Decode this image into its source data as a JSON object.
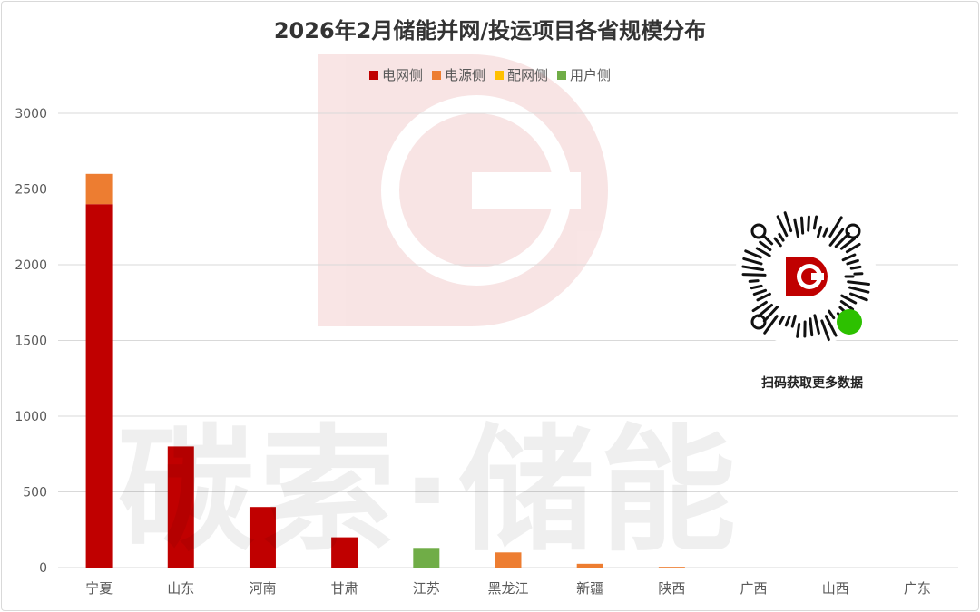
{
  "chart_data": {
    "type": "bar",
    "stacked": true,
    "title": "2026年2月储能并网/投运项目各省规模分布",
    "xlabel": "",
    "ylabel": "",
    "ylim": [
      0,
      3000
    ],
    "yticks": [
      0,
      500,
      1000,
      1500,
      2000,
      2500,
      3000
    ],
    "grid": true,
    "legend_position": "top",
    "categories": [
      "宁夏",
      "山东",
      "河南",
      "甘肃",
      "江苏",
      "黑龙江",
      "新疆",
      "陕西",
      "广西",
      "山西",
      "广东"
    ],
    "series": [
      {
        "name": "电网侧",
        "color": "#C00000",
        "values": [
          2400,
          800,
          400,
          200,
          0,
          0,
          0,
          0,
          0,
          0,
          0
        ]
      },
      {
        "name": "电源侧",
        "color": "#ED7D31",
        "values": [
          200,
          0,
          0,
          0,
          0,
          100,
          25,
          5,
          0,
          0,
          0
        ]
      },
      {
        "name": "配网侧",
        "color": "#FFC000",
        "values": [
          0,
          0,
          0,
          0,
          0,
          0,
          0,
          0,
          0,
          0,
          0
        ]
      },
      {
        "name": "用户侧",
        "color": "#70AD47",
        "values": [
          0,
          0,
          0,
          0,
          130,
          0,
          0,
          0,
          0,
          0,
          0
        ]
      }
    ]
  },
  "watermark": {
    "text": "碳索·储能",
    "logo_letter": "D",
    "logo_color": "#C00000"
  },
  "qr": {
    "caption": "扫码获取更多数据"
  }
}
